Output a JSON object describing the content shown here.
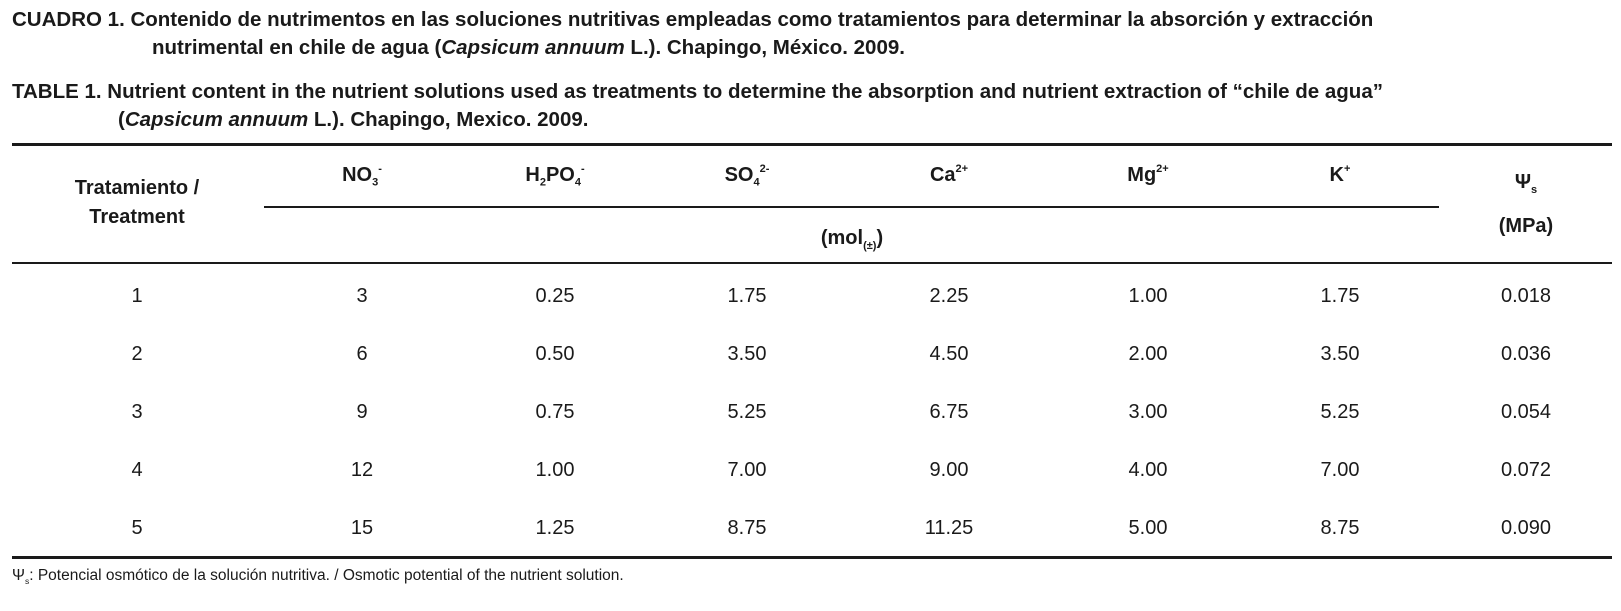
{
  "caption_es": [
    [
      {
        "text": "CUADRO 1. Contenido de nutrimentos en las soluciones nutritivas empleadas como tratamientos para determinar la absorción y extracción"
      }
    ],
    [
      {
        "text": "nutrimental en chile de agua ("
      },
      {
        "text": "Capsicum annuum",
        "style": "italic"
      },
      {
        "text": " L.). Chapingo, México. 2009."
      }
    ]
  ],
  "caption_en": [
    [
      {
        "text": "TABLE 1. Nutrient content in the nutrient solutions used as treatments to determine the absorption and nutrient extraction of “chile de agua”"
      }
    ],
    [
      {
        "text": "("
      },
      {
        "text": "Capsicum annuum",
        "style": "italic"
      },
      {
        "text": " L.). Chapingo, Mexico. 2009."
      }
    ]
  ],
  "table": {
    "treatment_header": [
      "Tratamiento /",
      "Treatment"
    ],
    "headers": [
      [
        {
          "text": "NO"
        },
        {
          "text": "3",
          "style": "sub"
        },
        {
          "text": "-",
          "style": "sup"
        }
      ],
      [
        {
          "text": "H"
        },
        {
          "text": "2",
          "style": "sub"
        },
        {
          "text": "PO"
        },
        {
          "text": "4",
          "style": "sub"
        },
        {
          "text": "-",
          "style": "sup"
        }
      ],
      [
        {
          "text": "SO"
        },
        {
          "text": "4",
          "style": "sub"
        },
        {
          "text": "2-",
          "style": "sup"
        }
      ],
      [
        {
          "text": "Ca"
        },
        {
          "text": "2+",
          "style": "sup"
        }
      ],
      [
        {
          "text": "Mg"
        },
        {
          "text": "2+",
          "style": "sup"
        }
      ],
      [
        {
          "text": "K"
        },
        {
          "text": "+",
          "style": "sup"
        }
      ]
    ],
    "unit": [
      {
        "text": "(mol"
      },
      {
        "text": "(±)",
        "style": "sub"
      },
      {
        "text": ")"
      }
    ],
    "psi_header": [
      {
        "text": "Ψ"
      },
      {
        "text": "s",
        "style": "sub"
      }
    ],
    "psi_unit": "(MPa)",
    "rows": [
      [
        "1",
        "3",
        "0.25",
        "1.75",
        "2.25",
        "1.00",
        "1.75",
        "0.018"
      ],
      [
        "2",
        "6",
        "0.50",
        "3.50",
        "4.50",
        "2.00",
        "3.50",
        "0.036"
      ],
      [
        "3",
        "9",
        "0.75",
        "5.25",
        "6.75",
        "3.00",
        "5.25",
        "0.054"
      ],
      [
        "4",
        "12",
        "1.00",
        "7.00",
        "9.00",
        "4.00",
        "7.00",
        "0.072"
      ],
      [
        "5",
        "15",
        "1.25",
        "8.75",
        "11.25",
        "5.00",
        "8.75",
        "0.090"
      ]
    ]
  },
  "footnote": [
    {
      "text": "Ψ"
    },
    {
      "text": "s",
      "style": "sub"
    },
    {
      "text": ": Potencial osmótico de la solución nutritiva. / Osmotic potential of the nutrient solution."
    }
  ]
}
